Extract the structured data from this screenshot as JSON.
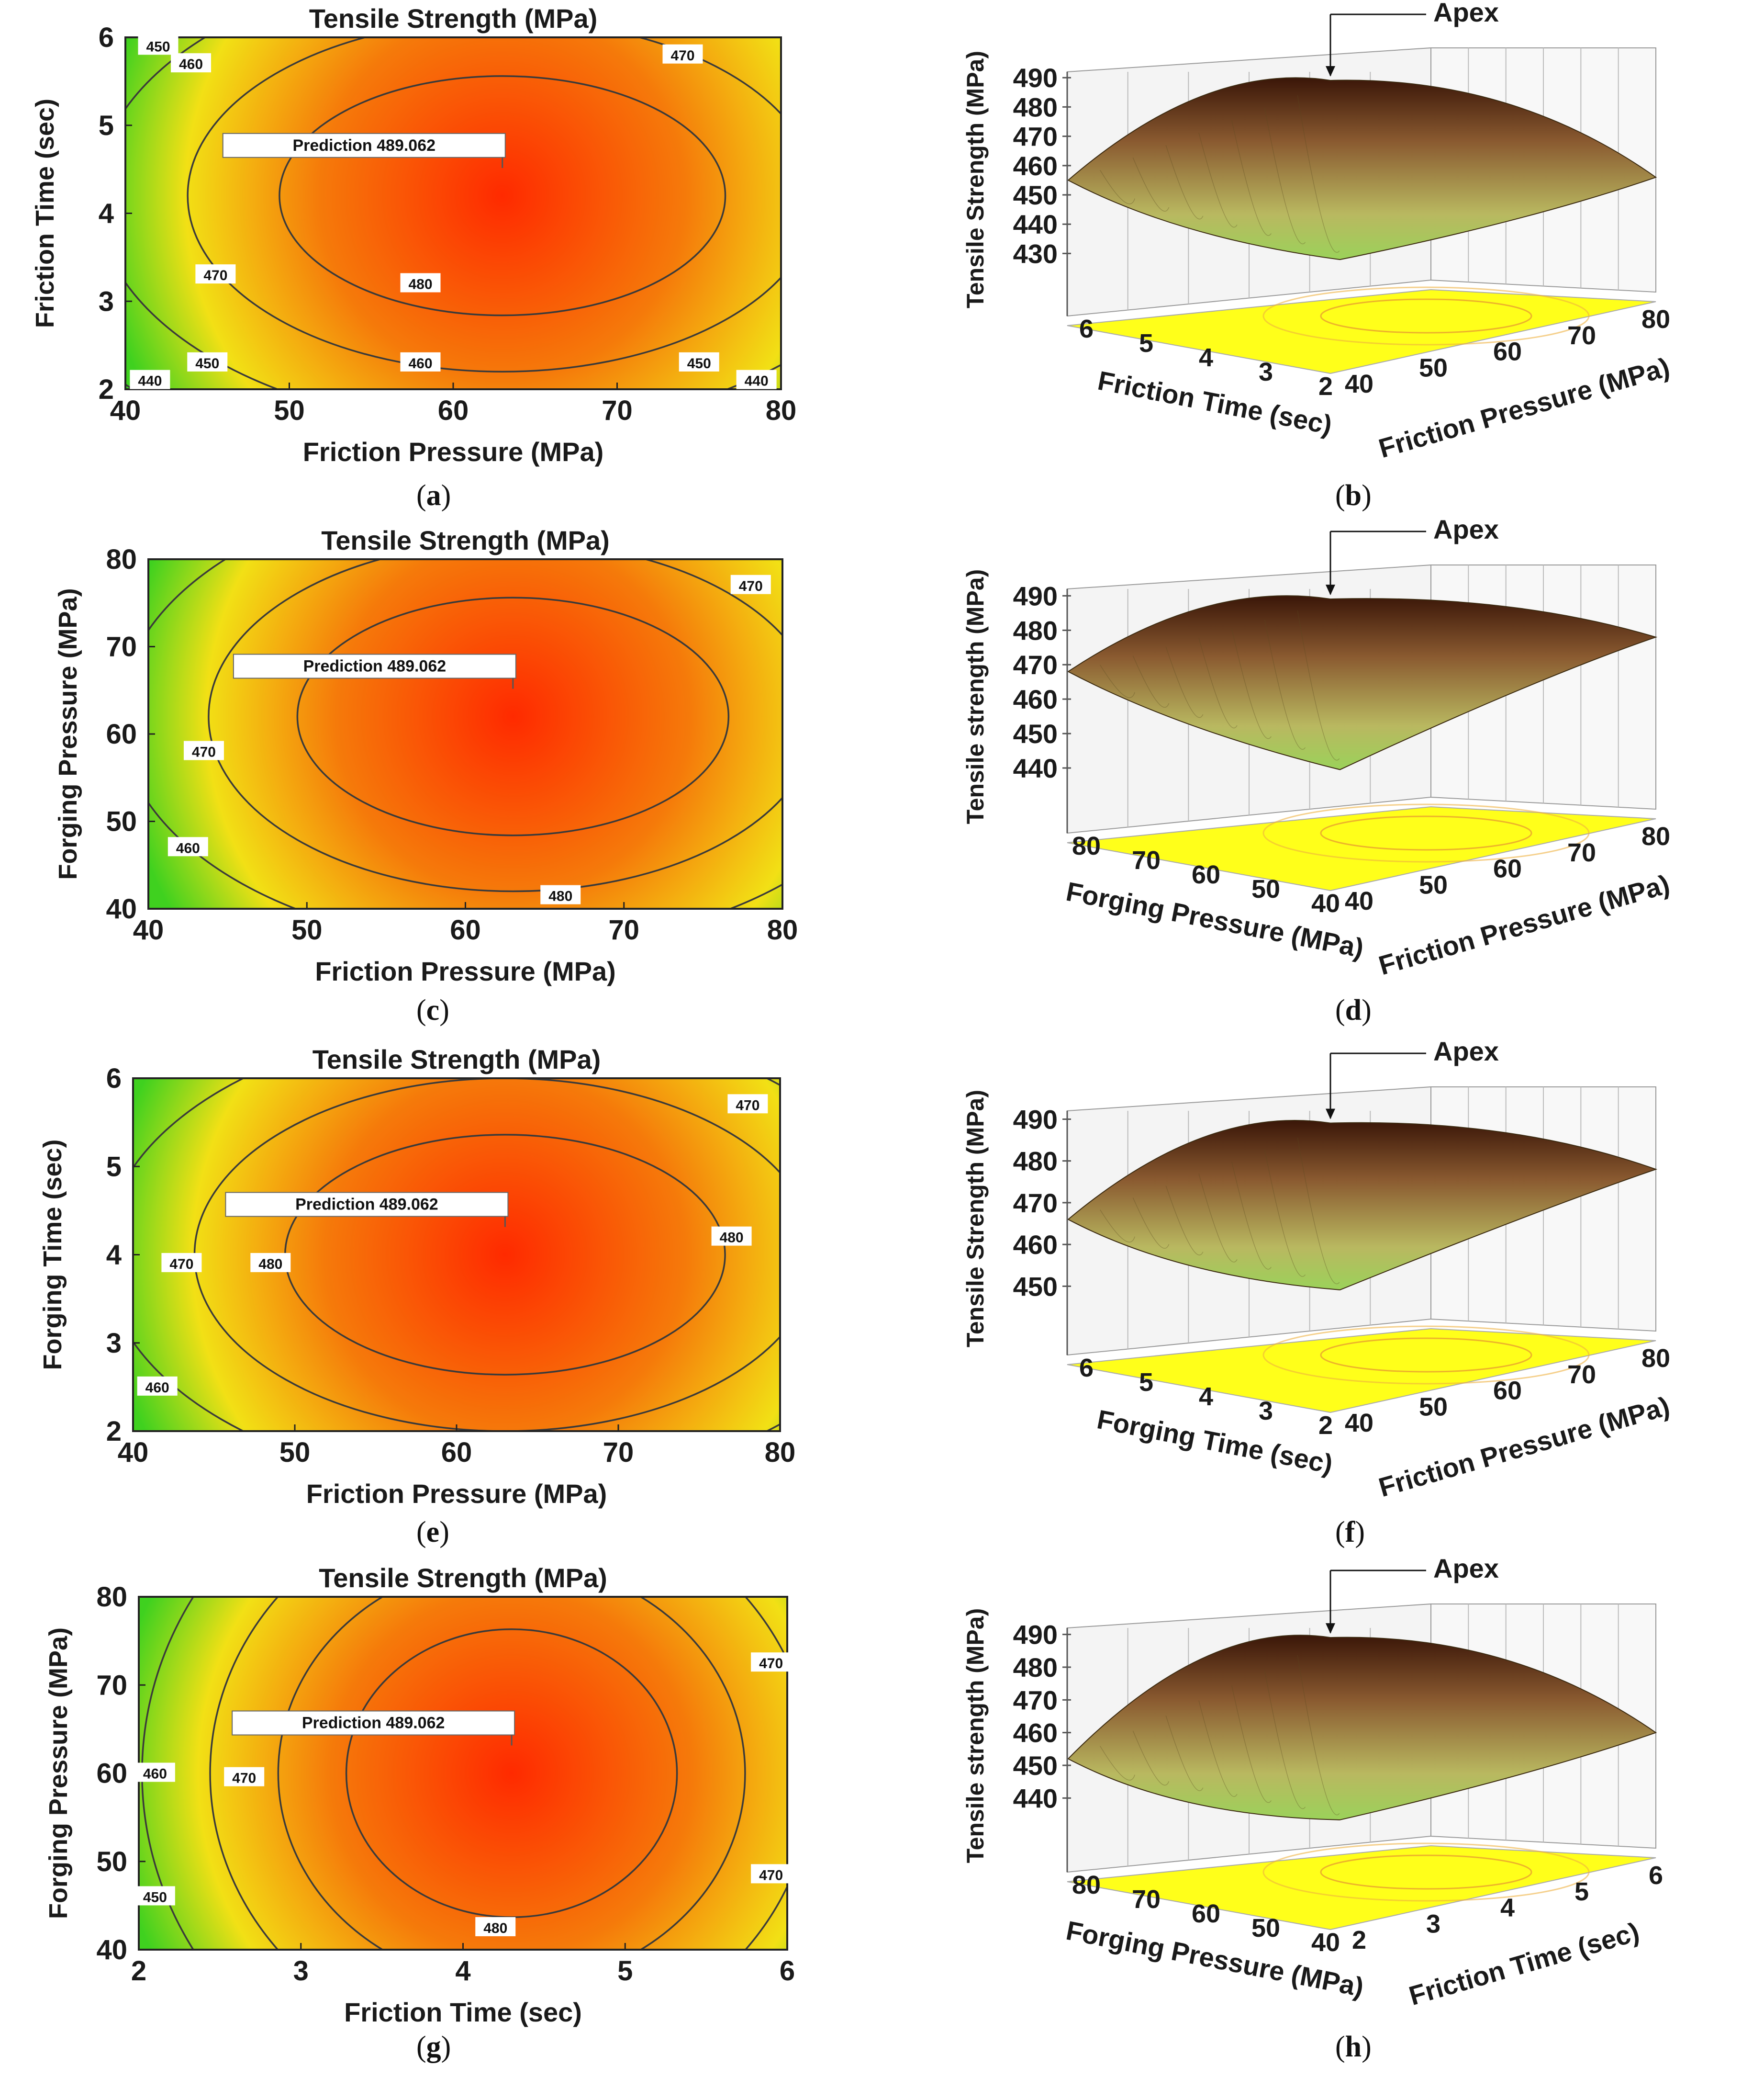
{
  "captions": [
    "a",
    "b",
    "c",
    "d",
    "e",
    "f",
    "g",
    "h"
  ],
  "colors": {
    "low": "#3fd11f",
    "mid": "#f2e015",
    "high": "#ff2a00",
    "surface_top": "#3a1608",
    "surface_low": "#9bd25a",
    "floor": "#ffff1a"
  },
  "chart_data": [
    {
      "id": "a",
      "type": "contour",
      "title": "Tensile Strength (MPa)",
      "xlabel": "Friction Pressure (MPa)",
      "ylabel": "Friction Time (sec)",
      "xlim": [
        40,
        80
      ],
      "ylim": [
        2,
        6
      ],
      "xticks": [
        "40",
        "50",
        "60",
        "70",
        "80"
      ],
      "yticks": [
        "2",
        "3",
        "4",
        "5",
        "6"
      ],
      "optimum": {
        "x": 63,
        "y": 4.2,
        "z": 489.062
      },
      "prediction_label": "Prediction 489.062",
      "contour_levels": [
        440,
        450,
        460,
        470,
        480
      ],
      "contour_labels": [
        {
          "text": "450",
          "x": 42,
          "y": 5.9
        },
        {
          "text": "460",
          "x": 44,
          "y": 5.7
        },
        {
          "text": "470",
          "x": 74,
          "y": 5.8
        },
        {
          "text": "470",
          "x": 45.5,
          "y": 3.3
        },
        {
          "text": "480",
          "x": 58,
          "y": 3.2
        },
        {
          "text": "440",
          "x": 41.5,
          "y": 2.1
        },
        {
          "text": "450",
          "x": 45,
          "y": 2.3
        },
        {
          "text": "460",
          "x": 58,
          "y": 2.3
        },
        {
          "text": "450",
          "x": 75,
          "y": 2.3
        },
        {
          "text": "440",
          "x": 78.5,
          "y": 2.1
        }
      ]
    },
    {
      "id": "b",
      "type": "surface3d",
      "zlabel": "Tensile Strength (MPa)",
      "zticks": [
        "490",
        "480",
        "470",
        "460",
        "450",
        "440",
        "430"
      ],
      "zlim": [
        425,
        492
      ],
      "left_axis": {
        "label": "Friction Time (sec)",
        "ticks": [
          "6",
          "5",
          "4",
          "3",
          "2"
        ]
      },
      "right_axis": {
        "label": "Friction Pressure (MPa)",
        "ticks": [
          "40",
          "50",
          "60",
          "70",
          "80"
        ]
      },
      "annotation": "Apex",
      "peak": 489.062,
      "corner_values": [
        455,
        432,
        456,
        440
      ]
    },
    {
      "id": "c",
      "type": "contour",
      "title": "Tensile Strength (MPa)",
      "xlabel": "Friction Pressure (MPa)",
      "ylabel": "Forging Pressure (MPa)",
      "xlim": [
        40,
        80
      ],
      "ylim": [
        40,
        80
      ],
      "xticks": [
        "40",
        "50",
        "60",
        "70",
        "80"
      ],
      "yticks": [
        "40",
        "50",
        "60",
        "70",
        "80"
      ],
      "optimum": {
        "x": 63,
        "y": 62,
        "z": 489.062
      },
      "prediction_label": "Prediction 489.062",
      "contour_levels": [
        460,
        470,
        480
      ],
      "contour_labels": [
        {
          "text": "470",
          "x": 78,
          "y": 77
        },
        {
          "text": "470",
          "x": 43.5,
          "y": 58
        },
        {
          "text": "460",
          "x": 42.5,
          "y": 47
        },
        {
          "text": "480",
          "x": 66,
          "y": 41.5
        }
      ]
    },
    {
      "id": "d",
      "type": "surface3d",
      "zlabel": "Tensile strength (MPa)",
      "zticks": [
        "490",
        "480",
        "470",
        "460",
        "450",
        "440"
      ],
      "zlim": [
        435,
        492
      ],
      "left_axis": {
        "label": "Forging Pressure (MPa)",
        "ticks": [
          "80",
          "70",
          "60",
          "50",
          "40"
        ]
      },
      "right_axis": {
        "label": "Friction Pressure (MPa)",
        "ticks": [
          "40",
          "50",
          "60",
          "70",
          "80"
        ]
      },
      "annotation": "Apex",
      "peak": 489.062,
      "corner_values": [
        468,
        443,
        478,
        472
      ]
    },
    {
      "id": "e",
      "type": "contour",
      "title": "Tensile Strength (MPa)",
      "xlabel": "Friction Pressure (MPa)",
      "ylabel": "Forging Time (sec)",
      "xlim": [
        40,
        80
      ],
      "ylim": [
        2,
        6
      ],
      "xticks": [
        "40",
        "50",
        "60",
        "70",
        "80"
      ],
      "yticks": [
        "2",
        "3",
        "4",
        "5",
        "6"
      ],
      "optimum": {
        "x": 63,
        "y": 4.0,
        "z": 489.062
      },
      "prediction_label": "Prediction 489.062",
      "contour_levels": [
        460,
        470,
        480
      ],
      "contour_labels": [
        {
          "text": "470",
          "x": 78,
          "y": 5.7
        },
        {
          "text": "480",
          "x": 77,
          "y": 4.2
        },
        {
          "text": "470",
          "x": 43,
          "y": 3.9
        },
        {
          "text": "480",
          "x": 48.5,
          "y": 3.9
        },
        {
          "text": "460",
          "x": 41.5,
          "y": 2.5
        }
      ]
    },
    {
      "id": "f",
      "type": "surface3d",
      "zlabel": "Tensile Strength (MPa)",
      "zticks": [
        "490",
        "480",
        "470",
        "460",
        "450"
      ],
      "zlim": [
        445,
        492
      ],
      "left_axis": {
        "label": "Forging Time (sec)",
        "ticks": [
          "6",
          "5",
          "4",
          "3",
          "2"
        ]
      },
      "right_axis": {
        "label": "Friction Pressure (MPa)",
        "ticks": [
          "40",
          "50",
          "60",
          "70",
          "80"
        ]
      },
      "annotation": "Apex",
      "peak": 489.062,
      "corner_values": [
        466,
        452,
        478,
        475
      ]
    },
    {
      "id": "g",
      "type": "contour",
      "title": "Tensile Strength (MPa)",
      "xlabel": "Friction Time (sec)",
      "ylabel": "Forging Pressure (MPa)",
      "xlim": [
        2,
        6
      ],
      "ylim": [
        40,
        80
      ],
      "xticks": [
        "2",
        "3",
        "4",
        "5",
        "6"
      ],
      "yticks": [
        "40",
        "50",
        "60",
        "70",
        "80"
      ],
      "optimum": {
        "x": 4.3,
        "y": 60,
        "z": 489.062
      },
      "prediction_label": "Prediction 489.062",
      "contour_levels": [
        450,
        460,
        470,
        480
      ],
      "contour_labels": [
        {
          "text": "470",
          "x": 5.9,
          "y": 72.5
        },
        {
          "text": "460",
          "x": 2.1,
          "y": 60
        },
        {
          "text": "470",
          "x": 2.65,
          "y": 59.5
        },
        {
          "text": "470",
          "x": 5.9,
          "y": 48.5
        },
        {
          "text": "450",
          "x": 2.1,
          "y": 46
        },
        {
          "text": "480",
          "x": 4.2,
          "y": 42.5
        }
      ]
    },
    {
      "id": "h",
      "type": "surface3d",
      "zlabel": "Tensile strength (MPa)",
      "zticks": [
        "490",
        "480",
        "470",
        "460",
        "450",
        "440"
      ],
      "zlim": [
        432,
        492
      ],
      "left_axis": {
        "label": "Forging Pressure (MPa)",
        "ticks": [
          "80",
          "70",
          "60",
          "50",
          "40"
        ]
      },
      "right_axis": {
        "label": "Friction Time (sec)",
        "ticks": [
          "2",
          "3",
          "4",
          "5",
          "6"
        ]
      },
      "annotation": "Apex",
      "peak": 489.062,
      "corner_values": [
        452,
        437,
        460,
        455
      ]
    }
  ]
}
